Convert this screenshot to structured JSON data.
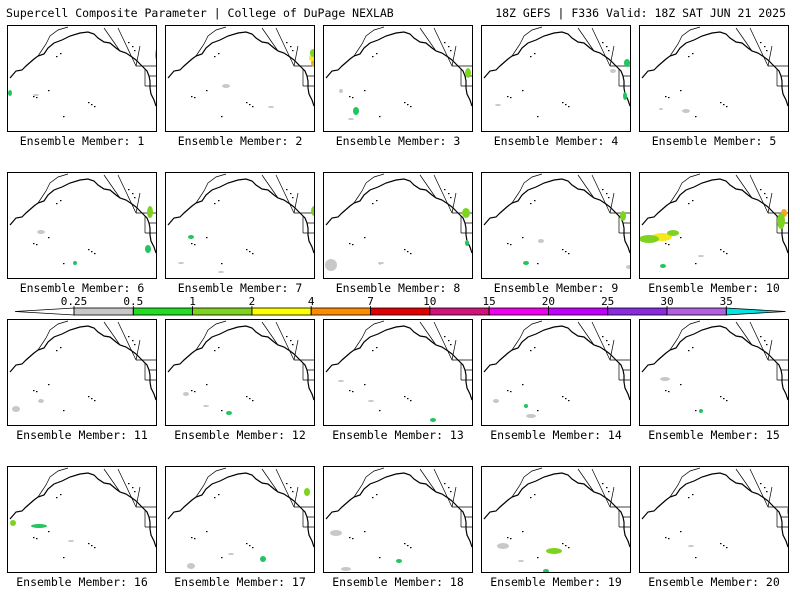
{
  "header": {
    "title": "Supercell Composite Parameter | College of DuPage NEXLAB",
    "run_info": "18Z GEFS | F336 Valid: 18Z SAT JUN 21 2025"
  },
  "member_label_prefix": "Ensemble Member: ",
  "members": [
    {
      "num": 1,
      "blobs": [
        [
          "#7ed321",
          157,
          54,
          3,
          7
        ],
        [
          "#22c55e",
          158,
          67,
          2,
          5
        ],
        [
          "#22c55e",
          9,
          92,
          2,
          3
        ],
        [
          "#c8c8c8",
          35,
          94,
          3,
          1
        ]
      ]
    },
    {
      "num": 2,
      "blobs": [
        [
          "#f5a623",
          313,
          62,
          3,
          4
        ],
        [
          "#f8e71c",
          311,
          57,
          3,
          3
        ],
        [
          "#7ed321",
          312,
          52,
          3,
          4
        ],
        [
          "#c8c8c8",
          225,
          85,
          4,
          2
        ],
        [
          "#c8c8c8",
          270,
          106,
          3,
          1
        ]
      ]
    },
    {
      "num": 3,
      "blobs": [
        [
          "#7ed321",
          467,
          72,
          3,
          5
        ],
        [
          "#22c55e",
          355,
          110,
          3,
          4
        ],
        [
          "#c8c8c8",
          350,
          118,
          3,
          1
        ],
        [
          "#c8c8c8",
          340,
          90,
          2,
          2
        ]
      ]
    },
    {
      "num": 4,
      "blobs": [
        [
          "#22c55e",
          626,
          62,
          3,
          4
        ],
        [
          "#22c55e",
          624,
          95,
          2,
          4
        ],
        [
          "#c8c8c8",
          497,
          104,
          3,
          1
        ],
        [
          "#c8c8c8",
          612,
          70,
          3,
          2
        ]
      ]
    },
    {
      "num": 5,
      "blobs": [
        [
          "#c8c8c8",
          685,
          110,
          4,
          2
        ],
        [
          "#c8c8c8",
          660,
          108,
          2,
          1
        ]
      ]
    },
    {
      "num": 6,
      "blobs": [
        [
          "#7ed321",
          149,
          211,
          3,
          6
        ],
        [
          "#22c55e",
          147,
          248,
          3,
          4
        ],
        [
          "#c8c8c8",
          40,
          231,
          4,
          2
        ],
        [
          "#22c55e",
          74,
          262,
          2,
          2
        ]
      ]
    },
    {
      "num": 7,
      "blobs": [
        [
          "#7ed321",
          313,
          210,
          3,
          5
        ],
        [
          "#22c55e",
          190,
          236,
          3,
          2
        ],
        [
          "#c8c8c8",
          180,
          262,
          3,
          1
        ],
        [
          "#c8c8c8",
          220,
          271,
          3,
          1
        ]
      ]
    },
    {
      "num": 8,
      "blobs": [
        [
          "#7ed321",
          465,
          212,
          4,
          5
        ],
        [
          "#22c55e",
          466,
          242,
          2,
          3
        ],
        [
          "#c8c8c8",
          330,
          264,
          6,
          6
        ],
        [
          "#c8c8c8",
          380,
          262,
          3,
          1
        ]
      ]
    },
    {
      "num": 9,
      "blobs": [
        [
          "#7ed321",
          622,
          215,
          3,
          5
        ],
        [
          "#c8c8c8",
          540,
          240,
          3,
          2
        ],
        [
          "#22c55e",
          525,
          262,
          3,
          2
        ],
        [
          "#c8c8c8",
          628,
          266,
          3,
          2
        ]
      ]
    },
    {
      "num": 10,
      "blobs": [
        [
          "#f8e71c",
          661,
          236,
          10,
          4
        ],
        [
          "#7ed321",
          648,
          238,
          10,
          4
        ],
        [
          "#7ed321",
          672,
          232,
          6,
          3
        ],
        [
          "#f5a623",
          783,
          212,
          3,
          4
        ],
        [
          "#7ed321",
          780,
          220,
          4,
          8
        ],
        [
          "#22c55e",
          662,
          265,
          3,
          2
        ],
        [
          "#c8c8c8",
          700,
          255,
          3,
          1
        ]
      ]
    },
    {
      "num": 11,
      "blobs": [
        [
          "#f8e71c",
          160,
          350,
          2,
          4
        ],
        [
          "#c8c8c8",
          15,
          408,
          4,
          3
        ],
        [
          "#c8c8c8",
          40,
          400,
          3,
          2
        ]
      ]
    },
    {
      "num": 12,
      "blobs": [
        [
          "#22c55e",
          228,
          412,
          3,
          2
        ],
        [
          "#c8c8c8",
          185,
          393,
          3,
          2
        ],
        [
          "#c8c8c8",
          205,
          405,
          3,
          1
        ]
      ]
    },
    {
      "num": 13,
      "blobs": [
        [
          "#22c55e",
          432,
          419,
          3,
          2
        ],
        [
          "#c8c8c8",
          370,
          400,
          3,
          1
        ],
        [
          "#c8c8c8",
          340,
          380,
          3,
          1
        ]
      ]
    },
    {
      "num": 14,
      "blobs": [
        [
          "#c8c8c8",
          530,
          415,
          5,
          2
        ],
        [
          "#c8c8c8",
          495,
          400,
          3,
          2
        ],
        [
          "#22c55e",
          525,
          405,
          2,
          2
        ]
      ]
    },
    {
      "num": 15,
      "blobs": [
        [
          "#f8e71c",
          628,
          360,
          3,
          4
        ],
        [
          "#c8c8c8",
          664,
          378,
          5,
          2
        ],
        [
          "#22c55e",
          700,
          410,
          2,
          2
        ]
      ]
    },
    {
      "num": 16,
      "blobs": [
        [
          "#7ed321",
          12,
          522,
          3,
          3
        ],
        [
          "#22c55e",
          38,
          525,
          8,
          2
        ],
        [
          "#c8c8c8",
          70,
          540,
          3,
          1
        ]
      ]
    },
    {
      "num": 17,
      "blobs": [
        [
          "#7ed321",
          306,
          491,
          3,
          4
        ],
        [
          "#22c55e",
          262,
          558,
          3,
          3
        ],
        [
          "#c8c8c8",
          190,
          565,
          4,
          3
        ],
        [
          "#c8c8c8",
          230,
          553,
          3,
          1
        ]
      ]
    },
    {
      "num": 18,
      "blobs": [
        [
          "#c8c8c8",
          335,
          532,
          6,
          3
        ],
        [
          "#c8c8c8",
          345,
          568,
          5,
          2
        ],
        [
          "#22c55e",
          398,
          560,
          3,
          2
        ]
      ]
    },
    {
      "num": 19,
      "blobs": [
        [
          "#7ed321",
          553,
          550,
          8,
          3
        ],
        [
          "#c8c8c8",
          502,
          545,
          6,
          3
        ],
        [
          "#22c55e",
          545,
          570,
          3,
          2
        ],
        [
          "#c8c8c8",
          520,
          560,
          3,
          1
        ]
      ]
    },
    {
      "num": 20,
      "blobs": [
        [
          "#7ed321",
          789,
          510,
          3,
          7
        ],
        [
          "#f8e71c",
          790,
          502,
          2,
          3
        ],
        [
          "#c8c8c8",
          690,
          545,
          3,
          1
        ]
      ]
    }
  ],
  "colorbar": {
    "tick_labels": [
      "0.25",
      "0.5",
      "1",
      "2",
      "4",
      "7",
      "10",
      "15",
      "20",
      "25",
      "30",
      "35"
    ],
    "segments": [
      "#c8c8c8",
      "#22dd22",
      "#7ed321",
      "#ffff00",
      "#ff8c00",
      "#e00000",
      "#d0157a",
      "#ee00ee",
      "#c000ff",
      "#8a2be2",
      "#b060e0",
      "#00e6e6"
    ]
  }
}
